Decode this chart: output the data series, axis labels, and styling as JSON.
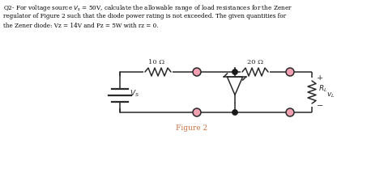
{
  "figure_label": "Figure 2",
  "figure_label_color": "#c87040",
  "background_color": "#ffffff",
  "text_color": "#000000",
  "circuit_color": "#2a2a2a",
  "node_open_color": "#f0a0b0",
  "node_filled_color": "#1a1a1a",
  "resistor_label_1": "10 Ω",
  "resistor_label_2": "20 Ω",
  "rl_label": "R_L",
  "vl_label": "v_L",
  "vs_label": "V_S",
  "plus_label": "+",
  "minus_label": "−",
  "text_line1": "Q2- For voltage source $V_s$ = 50V, calculate the allowable range of load resistances for the Zener",
  "text_line2": "regulator of Figure 2 such that the diode power rating is not exceeded. The given quantities for",
  "text_line3": "the Zener diode: Vz = 14V and Pz = 5W with rz = 0."
}
